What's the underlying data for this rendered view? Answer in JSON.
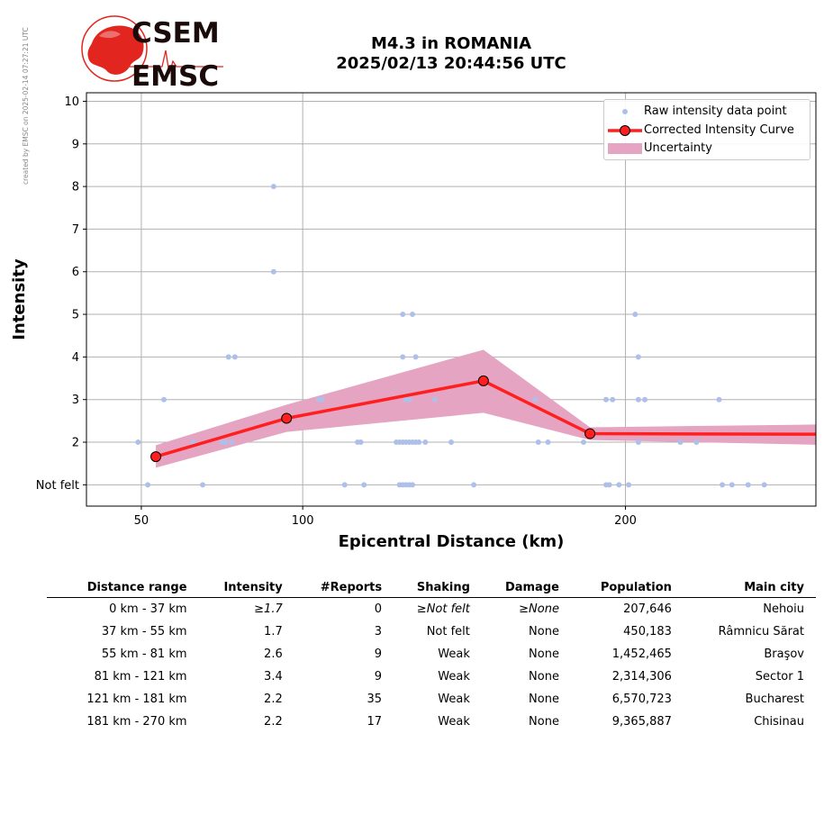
{
  "credit": "created by EMSC on 2025-02-14 07:27:21 UTC",
  "logo": {
    "line1": "CSEM",
    "line2": "EMSC"
  },
  "title": {
    "line1": "M4.3 in ROMANIA",
    "line2": "2025/02/13 20:44:56 UTC"
  },
  "chart_data": {
    "type": "scatter",
    "xlabel": "Epicentral Distance (km)",
    "ylabel": "Intensity",
    "xlim": [
      33,
      259
    ],
    "ylim": [
      0.5,
      10.2
    ],
    "xticks": [
      50,
      100,
      200
    ],
    "yticks": [
      {
        "value": 1,
        "label": "Not felt"
      },
      {
        "value": 2,
        "label": "2"
      },
      {
        "value": 3,
        "label": "3"
      },
      {
        "value": 4,
        "label": "4"
      },
      {
        "value": 5,
        "label": "5"
      },
      {
        "value": 6,
        "label": "6"
      },
      {
        "value": 7,
        "label": "7"
      },
      {
        "value": 8,
        "label": "8"
      },
      {
        "value": 9,
        "label": "9"
      },
      {
        "value": 10,
        "label": "10"
      }
    ],
    "grid": true,
    "legend_position": "top-right",
    "colors": {
      "raw": "#aec0ea",
      "curve": "#ff1f1f",
      "marker_edge": "#000000",
      "uncertainty": "#e5a5c2"
    },
    "series": [
      {
        "name": "Raw intensity data point",
        "kind": "points",
        "points": [
          [
            49,
            2
          ],
          [
            52,
            1
          ],
          [
            57,
            3
          ],
          [
            66,
            2
          ],
          [
            69,
            1
          ],
          [
            77,
            4
          ],
          [
            79,
            4
          ],
          [
            75,
            2
          ],
          [
            76,
            2
          ],
          [
            78,
            2
          ],
          [
            91,
            8
          ],
          [
            91,
            6
          ],
          [
            106,
            3
          ],
          [
            105,
            3
          ],
          [
            113,
            1
          ],
          [
            117,
            2
          ],
          [
            118,
            2
          ],
          [
            119,
            1
          ],
          [
            129,
            2
          ],
          [
            130,
            2
          ],
          [
            131,
            2
          ],
          [
            132,
            2
          ],
          [
            133,
            2
          ],
          [
            134,
            2
          ],
          [
            135,
            2
          ],
          [
            136,
            2
          ],
          [
            138,
            2
          ],
          [
            130,
            1
          ],
          [
            131,
            1
          ],
          [
            132,
            1
          ],
          [
            133,
            1
          ],
          [
            134,
            1
          ],
          [
            131,
            5
          ],
          [
            134,
            5
          ],
          [
            131,
            4
          ],
          [
            135,
            4
          ],
          [
            132,
            3
          ],
          [
            133,
            3
          ],
          [
            141,
            3
          ],
          [
            146,
            2
          ],
          [
            153,
            1
          ],
          [
            172,
            3
          ],
          [
            173,
            2
          ],
          [
            176,
            2
          ],
          [
            187,
            2
          ],
          [
            194,
            3
          ],
          [
            196,
            3
          ],
          [
            194,
            1
          ],
          [
            195,
            1
          ],
          [
            198,
            1
          ],
          [
            201,
            1
          ],
          [
            203,
            5
          ],
          [
            204,
            4
          ],
          [
            204,
            3
          ],
          [
            206,
            3
          ],
          [
            204,
            2
          ],
          [
            217,
            2
          ],
          [
            222,
            2
          ],
          [
            229,
            3
          ],
          [
            230,
            1
          ],
          [
            233,
            1
          ],
          [
            238,
            1
          ],
          [
            243,
            1
          ]
        ]
      },
      {
        "name": "Corrected Intensity Curve",
        "kind": "line",
        "points": [
          [
            54.5,
            1.66
          ],
          [
            95,
            2.56
          ],
          [
            156,
            3.44
          ],
          [
            189,
            2.2
          ],
          [
            298,
            2.18
          ]
        ]
      },
      {
        "name": "Uncertainty",
        "kind": "band",
        "upper": [
          [
            54.5,
            1.93
          ],
          [
            95,
            2.88
          ],
          [
            156,
            4.17
          ],
          [
            189,
            2.35
          ],
          [
            298,
            2.45
          ]
        ],
        "lower": [
          [
            54.5,
            1.4
          ],
          [
            95,
            2.24
          ],
          [
            156,
            2.69
          ],
          [
            189,
            2.05
          ],
          [
            298,
            1.88
          ]
        ]
      }
    ]
  },
  "table": {
    "headers": [
      "Distance range",
      "Intensity",
      "#Reports",
      "Shaking",
      "Damage",
      "Population",
      "Main city"
    ],
    "rows": [
      {
        "range": "0 km -   37 km",
        "intensity": "≥1.7",
        "reports": "0",
        "shaking": "≥Not felt",
        "damage": "≥None",
        "population": "207,646",
        "city": "Nehoiu",
        "italic": true
      },
      {
        "range": "37 km -   55 km",
        "intensity": "1.7",
        "reports": "3",
        "shaking": "Not felt",
        "damage": "None",
        "population": "450,183",
        "city": "Râmnicu Sărat",
        "italic": false
      },
      {
        "range": "55 km -   81 km",
        "intensity": "2.6",
        "reports": "9",
        "shaking": "Weak",
        "damage": "None",
        "population": "1,452,465",
        "city": "Braşov",
        "italic": false
      },
      {
        "range": "81 km -  121 km",
        "intensity": "3.4",
        "reports": "9",
        "shaking": "Weak",
        "damage": "None",
        "population": "2,314,306",
        "city": "Sector 1",
        "italic": false
      },
      {
        "range": "121 km -  181 km",
        "intensity": "2.2",
        "reports": "35",
        "shaking": "Weak",
        "damage": "None",
        "population": "6,570,723",
        "city": "Bucharest",
        "italic": false
      },
      {
        "range": "181 km -  270 km",
        "intensity": "2.2",
        "reports": "17",
        "shaking": "Weak",
        "damage": "None",
        "population": "9,365,887",
        "city": "Chisinau",
        "italic": false
      }
    ]
  }
}
